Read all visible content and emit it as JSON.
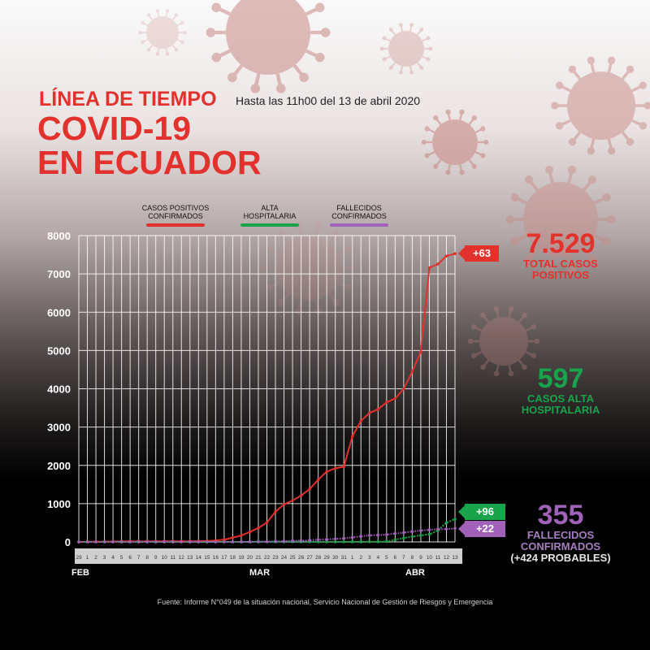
{
  "header": {
    "title_line1": "LÍNEA DE TIEMPO",
    "subtitle": "Hasta las 11h00 del 13 de abril 2020",
    "title_line2": "COVID-19",
    "title_line3": "EN ECUADOR"
  },
  "legend": [
    {
      "label": "CASOS POSITIVOS CONFIRMADOS",
      "color": "#e3312e"
    },
    {
      "label": "ALTA HOSPITALARIA",
      "color": "#19a34a"
    },
    {
      "label": "FALLECIDOS CONFIRMADOS",
      "color": "#a062b8"
    }
  ],
  "stats": {
    "positivos": {
      "value": "7.529",
      "label": "TOTAL CASOS POSITIVOS",
      "increment": "+63"
    },
    "alta": {
      "value": "597",
      "label": "CASOS ALTA HOSPITALARIA",
      "increment": "+96"
    },
    "fallecidos": {
      "value": "355",
      "label": "FALLECIDOS CONFIRMADOS",
      "label2": "(+424 PROBABLES)",
      "increment": "+22"
    }
  },
  "months": {
    "feb": "FEB",
    "mar": "MAR",
    "abr": "ABR"
  },
  "source": "Fuente: Informe N°049 de la situación nacional, Servicio Nacional de Gestión de Riesgos y Emergencia",
  "colors": {
    "red": "#e3312e",
    "green": "#19a34a",
    "purple": "#a062b8"
  },
  "chart_data": {
    "type": "line",
    "x": [
      "29",
      "1",
      "2",
      "3",
      "4",
      "5",
      "6",
      "7",
      "8",
      "9",
      "10",
      "11",
      "12",
      "13",
      "14",
      "15",
      "16",
      "17",
      "18",
      "19",
      "20",
      "21",
      "22",
      "23",
      "24",
      "25",
      "26",
      "27",
      "28",
      "29",
      "30",
      "31",
      "1",
      "2",
      "3",
      "4",
      "5",
      "6",
      "7",
      "8",
      "9",
      "10",
      "11",
      "12",
      "13"
    ],
    "ylim": [
      0,
      8000
    ],
    "yticks": [
      0,
      1000,
      2000,
      3000,
      4000,
      5000,
      6000,
      7000,
      8000
    ],
    "grid": true,
    "series": [
      {
        "name": "CASOS POSITIVOS CONFIRMADOS",
        "values": [
          1,
          6,
          6,
          7,
          10,
          13,
          13,
          14,
          14,
          15,
          15,
          17,
          17,
          17,
          19,
          23,
          37,
          58,
          111,
          168,
          260,
          365,
          506,
          789,
          981,
          1082,
          1211,
          1382,
          1627,
          1835,
          1924,
          1966,
          2758,
          3163,
          3368,
          3465,
          3646,
          3747,
          3995,
          4450,
          4965,
          7161,
          7257,
          7466,
          7529
        ]
      },
      {
        "name": "ALTA HOSPITALARIA",
        "values": [
          0,
          0,
          0,
          0,
          0,
          0,
          0,
          0,
          0,
          0,
          0,
          0,
          0,
          0,
          0,
          0,
          0,
          0,
          0,
          1,
          1,
          2,
          3,
          3,
          3,
          3,
          3,
          3,
          3,
          3,
          3,
          3,
          3,
          3,
          5,
          6,
          10,
          58,
          100,
          140,
          170,
          200,
          300,
          501,
          597
        ]
      },
      {
        "name": "FALLECIDOS CONFIRMADOS",
        "values": [
          0,
          0,
          0,
          0,
          0,
          0,
          0,
          0,
          0,
          0,
          0,
          0,
          0,
          0,
          0,
          0,
          0,
          2,
          2,
          3,
          5,
          7,
          7,
          14,
          18,
          28,
          33,
          43,
          58,
          62,
          79,
          93,
          120,
          145,
          172,
          180,
          191,
          220,
          242,
          272,
          297,
          315,
          333,
          333,
          355
        ]
      }
    ]
  }
}
